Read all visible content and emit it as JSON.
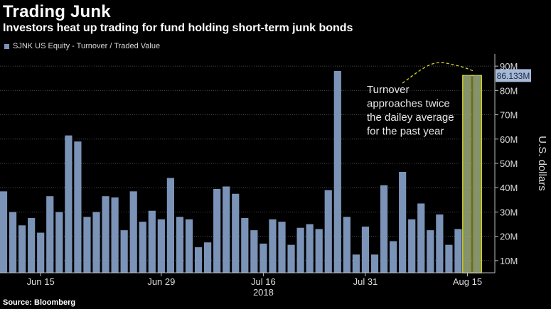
{
  "chart_data": {
    "type": "bar",
    "title": "Trading Junk",
    "subtitle": "Investors heat up trading for fund holding short-term junk bonds",
    "source": "Source: Bloomberg",
    "series": [
      {
        "name": "SJNK US Equity - Turnover / Traded Value",
        "color": "#7b93b7",
        "values": [
          38.5,
          30,
          24.5,
          27.5,
          21.5,
          36.5,
          30,
          61.5,
          59,
          28,
          30,
          36.5,
          36,
          22.5,
          38.5,
          26,
          30.5,
          27,
          44,
          28,
          27,
          15.5,
          17.5,
          39.5,
          40.5,
          37.5,
          27.5,
          22.5,
          17,
          27,
          26,
          16.5,
          23.5,
          25,
          23,
          39,
          88,
          28,
          12.5,
          24,
          12.5,
          41,
          18,
          46.5,
          27,
          33.5,
          22.5,
          29,
          16.5,
          23,
          86.133,
          86.133
        ]
      }
    ],
    "x_tick_labels": [
      "Jun 15",
      "Jun 29",
      "Jul 16",
      "Jul 31",
      "Aug 15"
    ],
    "x_tick_indices": [
      4,
      17,
      28,
      39,
      50
    ],
    "year_label": "2018",
    "ylabel": "U.S. dollars",
    "ylim": [
      5,
      95
    ],
    "y_ticks": [
      10,
      20,
      30,
      40,
      50,
      60,
      70,
      80,
      90
    ],
    "y_tick_labels": [
      "10M",
      "20M",
      "30M",
      "40M",
      "50M",
      "60M",
      "70M",
      "80M",
      "90M"
    ],
    "last_value_label": "86.133M",
    "highlight_color": "#c8c832",
    "highlight_bar_indices": [
      50,
      51
    ],
    "annotation": [
      "Turnover",
      "approaches twice",
      "the dailey average",
      "for the past year"
    ],
    "grid": true,
    "legend_position": "top-left"
  }
}
